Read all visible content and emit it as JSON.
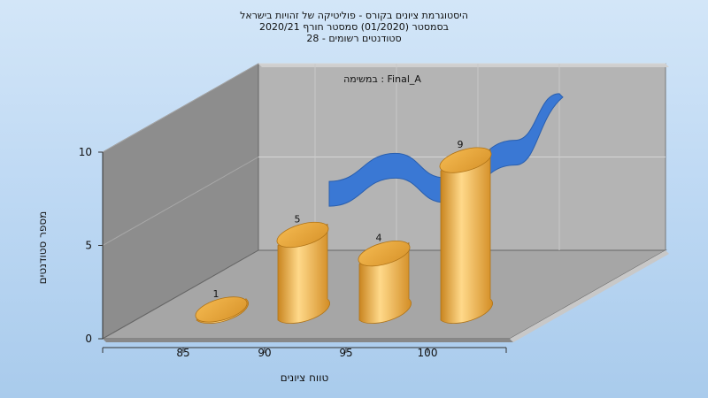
{
  "chart_data": {
    "type": "bar",
    "title_lines": [
      "היסטוגרמת ציונים בקורס - פוליטיקה של זהויות בישראל",
      "בסמסטר  (01/2020)  סמסטר חורף  2020/21",
      "סטודנטים רשומים - 28"
    ],
    "annotation": "במשימה : Final_A",
    "xlabel": "טווח ציונים",
    "ylabel": "מספר סטודנטים",
    "categories": [
      "85",
      "90",
      "95",
      "100"
    ],
    "values": [
      1,
      5,
      4,
      9
    ],
    "y_ticks": [
      0,
      5,
      10
    ],
    "ylim": [
      0,
      10
    ],
    "curve_values": [
      6.3,
      7.8,
      6.5,
      8.5,
      11.0
    ],
    "grid": true,
    "legend": "none",
    "colors": {
      "bar": "#e8a53e",
      "bar_light": "#ffd98a",
      "curve": "#3a78d4",
      "curve_dark": "#2a5fae"
    }
  }
}
